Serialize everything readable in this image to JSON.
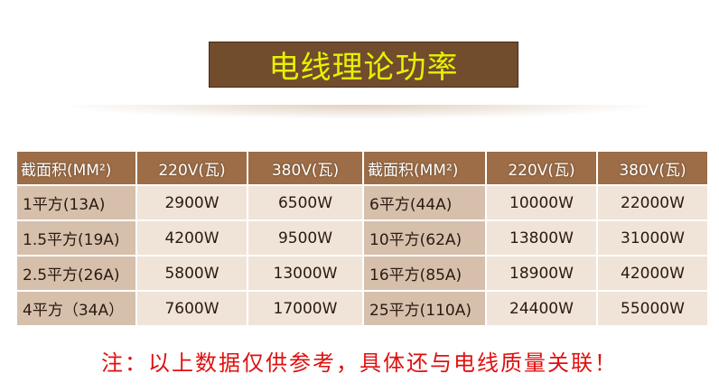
{
  "title": "电线理论功率",
  "table": {
    "headers": [
      "截面积(MM²)",
      "220V(瓦)",
      "380V(瓦)",
      "截面积(MM²)",
      "220V(瓦)",
      "380V(瓦)"
    ],
    "rows": [
      [
        "1平方(13A)",
        "2900W",
        "6500W",
        "6平方(44A)",
        "10000W",
        "22000W"
      ],
      [
        "1.5平方(19A)",
        "4200W",
        "9500W",
        "10平方(62A)",
        "13800W",
        "31000W"
      ],
      [
        "2.5平方(26A)",
        "5800W",
        "13000W",
        "16平方(85A)",
        "18900W",
        "42000W"
      ],
      [
        "4平方（34A）",
        "7600W",
        "17000W",
        "25平方(110A)",
        "24400W",
        "55000W"
      ]
    ]
  },
  "note": "注：以上数据仅供参考，具体还与电线质量关联！"
}
